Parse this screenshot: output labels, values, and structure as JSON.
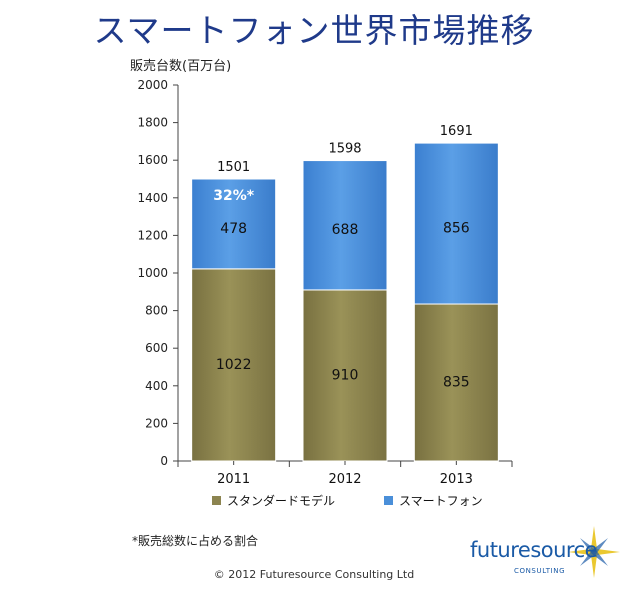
{
  "title": "スマートフォン世界市場推移",
  "chart_data": {
    "type": "bar",
    "stacked": true,
    "ylabel": "販売台数(百万台)",
    "xlabel": "",
    "ylim": [
      0,
      2000
    ],
    "ytick_step": 200,
    "grid": false,
    "legend_position": "bottom",
    "categories": [
      "2011",
      "2012",
      "2013"
    ],
    "series": [
      {
        "name": "スタンダードモデル",
        "values": [
          1022,
          910,
          835
        ],
        "color": "#8c8450"
      },
      {
        "name": "スマートフォン",
        "values": [
          478,
          688,
          856
        ],
        "color": "#4a8fd9"
      }
    ],
    "totals": [
      1501,
      1598,
      1691
    ],
    "annotations": [
      {
        "category": "2011",
        "text": "32%*"
      }
    ]
  },
  "footnote": "*販売総数に占める割合",
  "copyright": "© 2012 Futuresource Consulting Ltd",
  "logo": {
    "text": "futuresource",
    "subtext": "CONSULTING",
    "accent_color": "#1a5aa6",
    "star_color": "#e8c21a"
  }
}
